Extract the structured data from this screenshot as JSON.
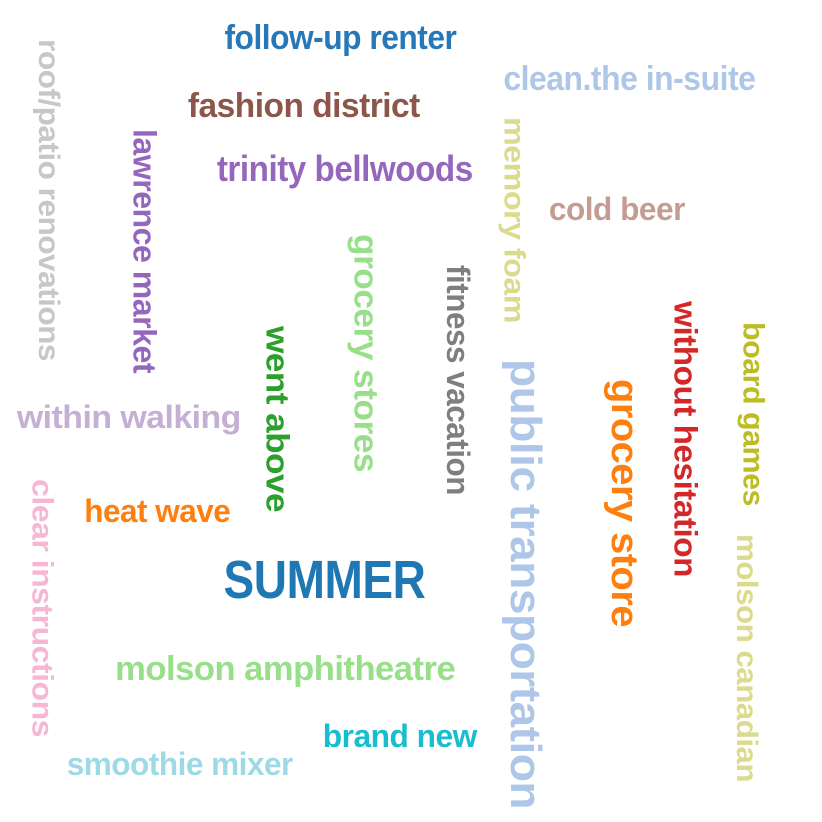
{
  "words": [
    {
      "id": "follow-up-renter",
      "text": "follow-up renter",
      "color": "#2678b8",
      "rotation": 0
    },
    {
      "id": "clean-the-in-suite",
      "text": "clean.the in-suite",
      "color": "#aec7e8",
      "rotation": 0
    },
    {
      "id": "fashion-district",
      "text": "fashion district",
      "color": "#8c564b",
      "rotation": 0
    },
    {
      "id": "trinity-bellwoods",
      "text": "trinity bellwoods",
      "color": "#9467bd",
      "rotation": 0
    },
    {
      "id": "roof-patio-renovations",
      "text": "roof/patio renovations",
      "color": "#c7c7c7",
      "rotation": 90
    },
    {
      "id": "lawrence-market",
      "text": "lawrence market",
      "color": "#9467bd",
      "rotation": 90
    },
    {
      "id": "memory-foam",
      "text": "memory foam",
      "color": "#dbdb8d",
      "rotation": 90
    },
    {
      "id": "cold-beer",
      "text": "cold beer",
      "color": "#c49c94",
      "rotation": 0
    },
    {
      "id": "grocery-stores",
      "text": "grocery stores",
      "color": "#98df8a",
      "rotation": 90
    },
    {
      "id": "fitness-vacation",
      "text": "fitness vacation",
      "color": "#7f7f7f",
      "rotation": 90
    },
    {
      "id": "went-above",
      "text": "went above",
      "color": "#2ca02c",
      "rotation": 90
    },
    {
      "id": "public-transportation",
      "text": "public transportation",
      "color": "#aec7e8",
      "rotation": 90
    },
    {
      "id": "without-hesitation",
      "text": "without hesitation",
      "color": "#d62728",
      "rotation": 90
    },
    {
      "id": "board-games",
      "text": "board games",
      "color": "#bcbd22",
      "rotation": 90
    },
    {
      "id": "grocery-store",
      "text": "grocery store",
      "color": "#ff7f0e",
      "rotation": 90
    },
    {
      "id": "within-walking",
      "text": "within walking",
      "color": "#c5b0d5",
      "rotation": 0
    },
    {
      "id": "heat-wave",
      "text": "heat wave",
      "color": "#ff7f0e",
      "rotation": 0
    },
    {
      "id": "clear-instructions",
      "text": "clear instructions",
      "color": "#f7b6d2",
      "rotation": 90
    },
    {
      "id": "summer",
      "text": "SUMMER",
      "color": "#1f77b4",
      "rotation": 0
    },
    {
      "id": "molson-canadian",
      "text": "molson canadian",
      "color": "#dbdb8d",
      "rotation": 90
    },
    {
      "id": "molson-amphitheatre",
      "text": "molson amphitheatre",
      "color": "#98df8a",
      "rotation": 0
    },
    {
      "id": "brand-new",
      "text": "brand new",
      "color": "#17becf",
      "rotation": 0
    },
    {
      "id": "smoothie-mixer",
      "text": "smoothie mixer",
      "color": "#9edae5",
      "rotation": 0
    }
  ]
}
